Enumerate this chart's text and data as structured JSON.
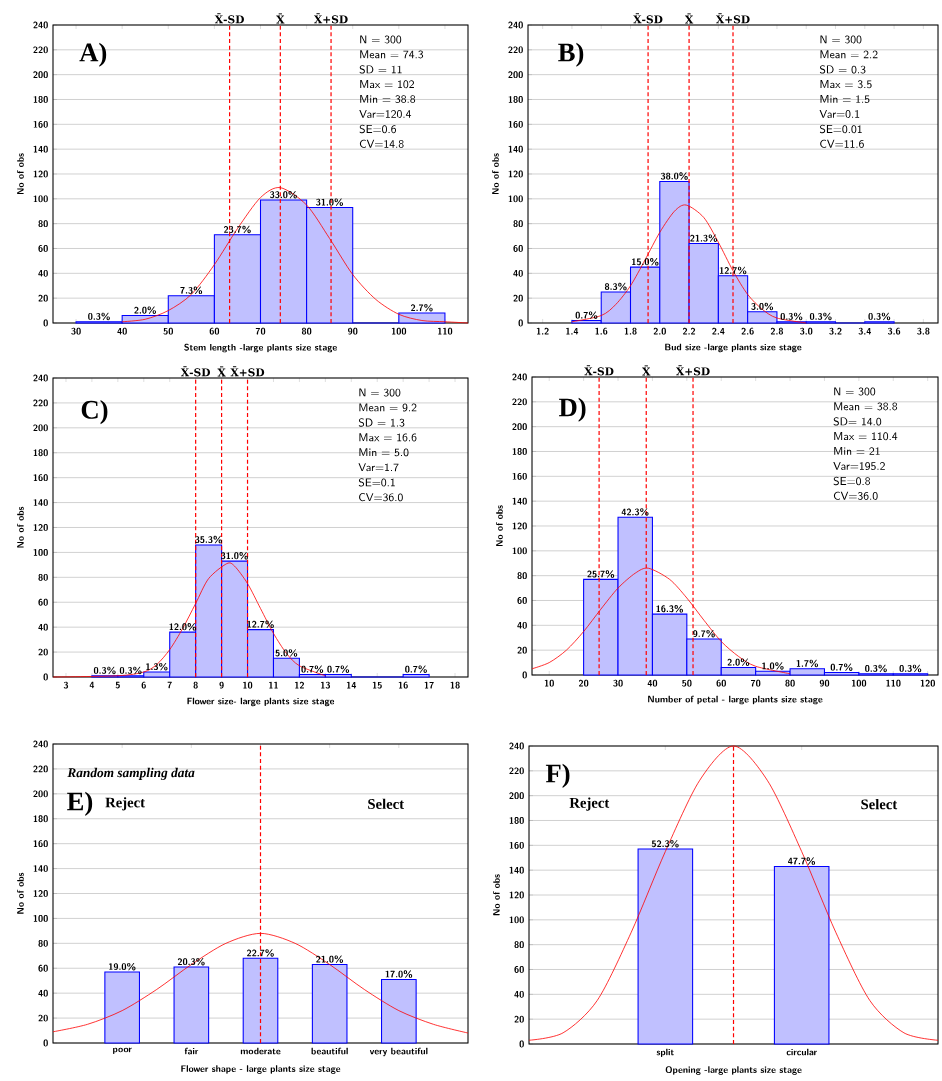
{
  "chart_data": [
    {
      "type": "histogram",
      "xlabel": "Stem length -large plants size stage",
      "ylabel": "No of obs",
      "xlim": [
        25,
        115
      ],
      "xticks": [
        30,
        40,
        50,
        60,
        70,
        80,
        90,
        100,
        110
      ],
      "ylim": [
        0,
        240
      ],
      "yticks": [
        0,
        20,
        40,
        60,
        80,
        100,
        120,
        140,
        160,
        180,
        200,
        220,
        240
      ],
      "grid": "y",
      "series": [
        {
          "type": "histogram",
          "color": "#c0c0ff",
          "bins": [
            30,
            40,
            50,
            60,
            70,
            80,
            90,
            100,
            110
          ],
          "values": [
            1,
            6,
            22,
            71,
            99,
            93,
            0,
            8
          ]
        },
        {
          "type": "line",
          "color": "#ff0000",
          "x": [
            40,
            45,
            50,
            55,
            60,
            65,
            70,
            74.3,
            80,
            85,
            90,
            95,
            100,
            105,
            110,
            115
          ],
          "values": [
            1,
            3,
            10,
            23,
            47,
            76,
            101,
            109,
            95,
            68,
            39,
            19,
            7,
            2,
            1,
            0
          ]
        }
      ],
      "ref_lines": [
        {
          "axis": "x",
          "value": 63.3,
          "label": "X̄-SD",
          "color": "#ff0000",
          "line_style": "dashed"
        },
        {
          "axis": "x",
          "value": 74.3,
          "label": "X̄",
          "color": "#ff0000",
          "line_style": "dashed"
        },
        {
          "axis": "x",
          "value": 85.3,
          "label": "X̄+SD",
          "color": "#ff0000",
          "line_style": "dashed"
        }
      ],
      "annotations": [
        "A)",
        "N = 300",
        "Mean = 74.3",
        "SD = 11",
        "Max = 102",
        "Min = 38.8",
        "Var=120.4",
        "SE=0.6",
        "CV=14.8",
        {
          "text": "0.3%",
          "x": 35,
          "y": 1
        },
        {
          "text": "2.0%",
          "x": 45,
          "y": 6
        },
        {
          "text": "7.3%",
          "x": 55,
          "y": 22
        },
        {
          "text": "23.7%",
          "x": 65,
          "y": 71
        },
        {
          "text": "33.0%",
          "x": 75,
          "y": 99
        },
        {
          "text": "31.0%",
          "x": 85,
          "y": 93
        },
        {
          "text": "2.7%",
          "x": 105,
          "y": 8
        }
      ]
    },
    {
      "type": "histogram",
      "xlabel": "Bud size -large plants size stage",
      "ylabel": "No of obs",
      "xlim": [
        1.1,
        3.9
      ],
      "xticks": [
        1.2,
        1.4,
        1.6,
        1.8,
        {
          "value": 2,
          "label": "2.0"
        },
        2.2,
        2.4,
        2.6,
        2.8,
        {
          "value": 3,
          "label": "3.0"
        },
        3.2,
        3.4,
        3.6,
        3.8
      ],
      "ylim": [
        0,
        240
      ],
      "yticks": [
        0,
        20,
        40,
        60,
        80,
        100,
        120,
        140,
        160,
        180,
        200,
        220,
        240
      ],
      "grid": "y",
      "series": [
        {
          "type": "histogram",
          "color": "#c0c0ff",
          "bins": [
            1.4,
            1.6,
            1.8,
            2.0,
            2.2,
            2.4,
            2.6,
            2.8,
            3.0,
            3.2,
            3.4,
            3.6
          ],
          "values": [
            2,
            25,
            45,
            114,
            64,
            38,
            9,
            1,
            1,
            0,
            1
          ]
        },
        {
          "type": "line",
          "color": "#ff0000",
          "x": [
            1.4,
            1.6,
            1.7,
            1.8,
            1.9,
            2.0,
            2.1,
            2.18,
            2.3,
            2.4,
            2.5,
            2.6,
            2.7,
            2.8,
            3.0
          ],
          "values": [
            1,
            6,
            15,
            30,
            51,
            73,
            90,
            95,
            85,
            65,
            42,
            23,
            11,
            4,
            0
          ]
        }
      ],
      "ref_lines": [
        {
          "axis": "x",
          "value": 1.92,
          "label": "X̄-SD",
          "color": "#ff0000",
          "line_style": "dashed"
        },
        {
          "axis": "x",
          "value": 2.2,
          "label": "X̄",
          "color": "#ff0000",
          "line_style": "dashed"
        },
        {
          "axis": "x",
          "value": 2.5,
          "label": "X̄+SD",
          "color": "#ff0000",
          "line_style": "dashed"
        }
      ],
      "annotations": [
        "B)",
        "N = 300",
        "Mean = 2.2",
        "SD = 0.3",
        "Max = 3.5",
        "Min = 1.5",
        "Var=0.1",
        "SE=0.01",
        "CV=11.6",
        {
          "text": "0.7%",
          "x": 1.5,
          "y": 2
        },
        {
          "text": "8.3%",
          "x": 1.7,
          "y": 25
        },
        {
          "text": "15.0%",
          "x": 1.9,
          "y": 45
        },
        {
          "text": "38.0%",
          "x": 2.1,
          "y": 114
        },
        {
          "text": "21.3%",
          "x": 2.3,
          "y": 64
        },
        {
          "text": "12.7%",
          "x": 2.5,
          "y": 38
        },
        {
          "text": "3.0%",
          "x": 2.7,
          "y": 9
        },
        {
          "text": "0.3%",
          "x": 2.9,
          "y": 1
        },
        {
          "text": "0.3%",
          "x": 3.1,
          "y": 1
        },
        {
          "text": "0.3%",
          "x": 3.5,
          "y": 1
        }
      ]
    },
    {
      "type": "histogram",
      "xlabel": "Flower size- large plants size stage",
      "ylabel": "No of obs",
      "xlim": [
        2.5,
        18.5
      ],
      "xticks": [
        3,
        4,
        5,
        6,
        7,
        8,
        9,
        10,
        11,
        12,
        13,
        14,
        15,
        16,
        17,
        18
      ],
      "ylim": [
        0,
        240
      ],
      "yticks": [
        0,
        20,
        40,
        60,
        80,
        100,
        120,
        140,
        160,
        180,
        200,
        220,
        240
      ],
      "grid": "y",
      "series": [
        {
          "type": "histogram",
          "color": "#c0c0ff",
          "bins": [
            4,
            5,
            6,
            7,
            8,
            9,
            10,
            11,
            12,
            13,
            14,
            15,
            16,
            17
          ],
          "values": [
            1,
            1,
            4,
            36,
            106,
            93,
            38,
            15,
            2,
            2,
            0,
            0,
            2
          ]
        },
        {
          "type": "line",
          "color": "#ff0000",
          "x": [
            2.5,
            5,
            6,
            6.5,
            7,
            7.5,
            8,
            8.5,
            9.2,
            9.5,
            10,
            10.5,
            11,
            11.5,
            12,
            13
          ],
          "values": [
            0,
            1,
            4,
            10,
            22,
            39,
            59,
            79,
            91,
            89,
            75,
            55,
            35,
            19,
            9,
            1
          ]
        }
      ],
      "ref_lines": [
        {
          "axis": "x",
          "value": 8,
          "label": "X̄-SD",
          "color": "#ff0000",
          "line_style": "dashed"
        },
        {
          "axis": "x",
          "value": 9,
          "label": "X̄",
          "color": "#ff0000",
          "line_style": "dashed"
        },
        {
          "axis": "x",
          "value": 10,
          "label": "X̄+SD",
          "color": "#ff0000",
          "line_style": "dashed"
        }
      ],
      "annotations": [
        "C)",
        "N = 300",
        "Mean = 9.2",
        "SD = 1.3",
        "Max = 16.6",
        "Min = 5.0",
        "Var=1.7",
        "SE=0.1",
        "CV=36.0",
        {
          "text": "0.3%",
          "x": 4.5,
          "y": 1
        },
        {
          "text": "0.3%",
          "x": 5.5,
          "y": 1
        },
        {
          "text": "1.3%",
          "x": 6.5,
          "y": 4
        },
        {
          "text": "12.0%",
          "x": 7.5,
          "y": 36
        },
        {
          "text": "35.3%",
          "x": 8.5,
          "y": 106
        },
        {
          "text": "31.0%",
          "x": 9.5,
          "y": 93
        },
        {
          "text": "12.7%",
          "x": 10.5,
          "y": 38
        },
        {
          "text": "5.0%",
          "x": 11.5,
          "y": 15
        },
        {
          "text": "0.7%",
          "x": 12.5,
          "y": 2
        },
        {
          "text": "0.7%",
          "x": 13.5,
          "y": 2
        },
        {
          "text": "0.7%",
          "x": 16.5,
          "y": 2
        }
      ]
    },
    {
      "type": "histogram",
      "xlabel": "Number of petal - large plants size stage",
      "ylabel": "No of obs",
      "xlim": [
        5,
        123
      ],
      "xticks": [
        10,
        20,
        30,
        40,
        50,
        60,
        70,
        80,
        90,
        100,
        110,
        120
      ],
      "ylim": [
        0,
        240
      ],
      "yticks": [
        0,
        20,
        40,
        60,
        80,
        100,
        120,
        140,
        160,
        180,
        200,
        220,
        240
      ],
      "grid": "y",
      "series": [
        {
          "type": "histogram",
          "color": "#c0c0ff",
          "bins": [
            20,
            30,
            40,
            50,
            60,
            70,
            80,
            90,
            100,
            110,
            120
          ],
          "values": [
            77,
            127,
            49,
            29,
            6,
            3,
            5,
            2,
            1,
            1
          ]
        },
        {
          "type": "line",
          "color": "#ff0000",
          "x": [
            5,
            10,
            15,
            20,
            25,
            30,
            35,
            38.8,
            45,
            50,
            55,
            60,
            65,
            70,
            80
          ],
          "values": [
            5,
            10,
            20,
            35,
            53,
            70,
            82,
            86,
            77,
            62,
            44,
            27,
            15,
            7,
            1
          ]
        }
      ],
      "ref_lines": [
        {
          "axis": "x",
          "value": 24.5,
          "label": "X̄-SD",
          "color": "#ff0000",
          "line_style": "dashed"
        },
        {
          "axis": "x",
          "value": 38.2,
          "label": "X̄",
          "color": "#ff0000",
          "line_style": "dashed"
        },
        {
          "axis": "x",
          "value": 51.8,
          "label": "X̄+SD",
          "color": "#ff0000",
          "line_style": "dashed"
        }
      ],
      "annotations": [
        "D)",
        "N = 300",
        "Mean = 38.8",
        "SD= 14.0",
        "Max = 110.4",
        "Min = 21",
        "Var=195.2",
        "SE=0.8",
        "CV=36.0",
        {
          "text": "25.7%",
          "x": 25,
          "y": 77
        },
        {
          "text": "42.3%",
          "x": 35,
          "y": 127
        },
        {
          "text": "16.3%",
          "x": 45,
          "y": 49
        },
        {
          "text": "9.7%",
          "x": 55,
          "y": 29
        },
        {
          "text": "2.0%",
          "x": 65,
          "y": 6
        },
        {
          "text": "1.0%",
          "x": 75,
          "y": 3
        },
        {
          "text": "1.7%",
          "x": 85,
          "y": 5
        },
        {
          "text": "0.7%",
          "x": 95,
          "y": 2
        },
        {
          "text": "0.3%",
          "x": 105,
          "y": 1
        },
        {
          "text": "0.3%",
          "x": 115,
          "y": 1
        }
      ]
    },
    {
      "type": "bar",
      "categories": [
        null,
        null,
        "poor",
        null,
        "fair",
        null,
        "moderate",
        null,
        "beautiful",
        null,
        "very beautiful",
        null,
        null
      ],
      "xlabel": "Flower shape - large plants size stage",
      "ylabel": "No of obs",
      "ylim": [
        0,
        240
      ],
      "yticks": [
        0,
        20,
        40,
        60,
        80,
        100,
        120,
        140,
        160,
        180,
        200,
        220,
        240
      ],
      "grid": "y",
      "series": [
        {
          "type": "bar",
          "color": "#c0c0ff",
          "values": [
            null,
            null,
            57,
            null,
            61,
            null,
            68,
            null,
            63,
            null,
            51,
            null,
            null
          ]
        },
        {
          "type": "line",
          "color": "#ff0000",
          "values": [
            9,
            15,
            26,
            43,
            63,
            80,
            88,
            80,
            63,
            43,
            26,
            15,
            8
          ]
        }
      ],
      "ref_lines": [
        {
          "axis": "x",
          "value": "moderate",
          "color": "#ff0000",
          "line_style": "dashed"
        }
      ],
      "annotations": [
        "Random sampling data",
        "E)",
        "Reject",
        "Select",
        {
          "text": "19.0%",
          "x": "poor",
          "y": 57
        },
        {
          "text": "20.3%",
          "x": "fair",
          "y": 61
        },
        {
          "text": "22.7%",
          "x": "moderate",
          "y": 68
        },
        {
          "text": "21.0%",
          "x": "beautiful",
          "y": 63
        },
        {
          "text": "17.0%",
          "x": "very beautiful",
          "y": 51
        }
      ]
    },
    {
      "type": "bar",
      "categories": [
        null,
        null,
        null,
        null,
        "split",
        null,
        null,
        null,
        "circular",
        null,
        null,
        null,
        null
      ],
      "xlabel": "Opening -large plants size stage",
      "ylabel": "No of obs",
      "ylim": [
        0,
        240
      ],
      "yticks": [
        0,
        20,
        40,
        60,
        80,
        100,
        120,
        140,
        160,
        180,
        200,
        220,
        240
      ],
      "grid": "y",
      "series": [
        {
          "type": "bar",
          "color": "#c0c0ff",
          "values": [
            null,
            null,
            null,
            null,
            157,
            null,
            null,
            null,
            143,
            null,
            null,
            null,
            null
          ]
        },
        {
          "type": "line",
          "color": "#ff0000",
          "values": [
            3,
            9,
            35,
            90,
            155,
            212,
            240,
            212,
            155,
            90,
            35,
            9,
            3
          ]
        }
      ],
      "annotations": [
        "F)",
        "Reject",
        "Select",
        {
          "text": "52.3%",
          "x": "split",
          "y": 157
        },
        {
          "text": "47.7%",
          "x": "circular",
          "y": 143
        }
      ]
    }
  ]
}
